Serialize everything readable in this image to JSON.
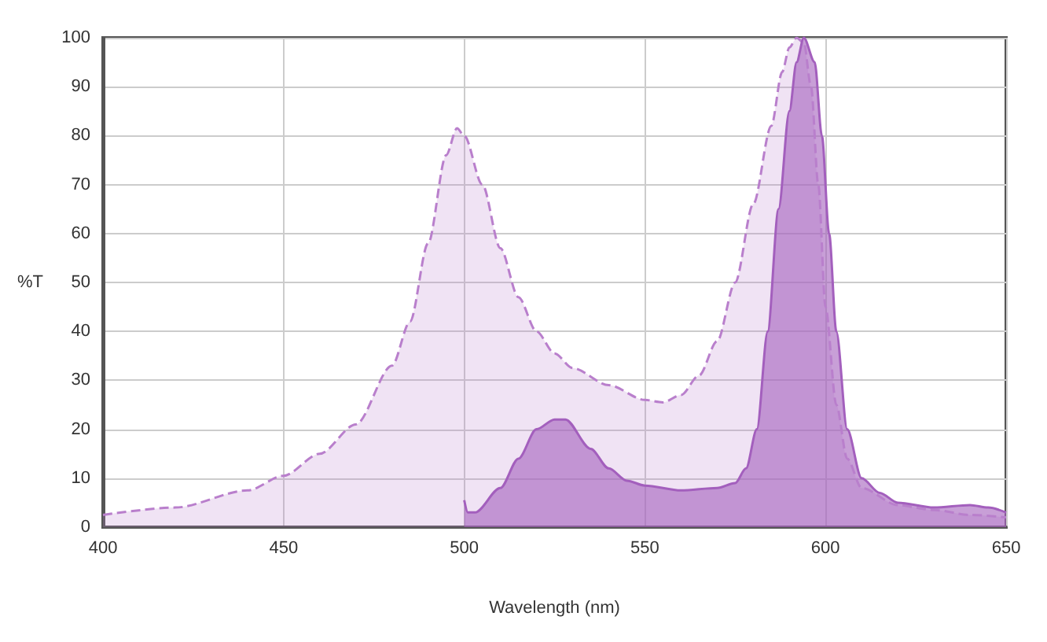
{
  "chart_data": {
    "type": "area",
    "xlabel": "Wavelength (nm)",
    "ylabel": "%T",
    "xlim": [
      400,
      650
    ],
    "ylim": [
      0,
      100
    ],
    "xticks": [
      400,
      450,
      500,
      550,
      600,
      650
    ],
    "yticks": [
      0,
      10,
      20,
      30,
      40,
      50,
      60,
      70,
      80,
      90,
      100
    ],
    "grid": true,
    "marker": "none",
    "series": [
      {
        "color": "#b97fcc",
        "line_style": "dashed",
        "x": [
          400,
          420,
          440,
          450,
          460,
          470,
          480,
          485,
          490,
          495,
          498,
          500,
          505,
          510,
          515,
          520,
          525,
          530,
          540,
          550,
          555,
          560,
          565,
          570,
          575,
          580,
          585,
          588,
          590,
          592,
          594,
          596,
          598,
          600,
          603,
          606,
          610,
          620,
          630,
          640,
          650
        ],
        "values": [
          2.5,
          4,
          7.5,
          10.5,
          15,
          21,
          33,
          42,
          58,
          76,
          81.5,
          80,
          70,
          57,
          47,
          40,
          35.5,
          32.5,
          29,
          26,
          25.5,
          27,
          31,
          38,
          50,
          66,
          82,
          93,
          98,
          100,
          99,
          90,
          70,
          45,
          25,
          14,
          8,
          4.5,
          3.5,
          2.5,
          2
        ]
      },
      {
        "color": "#a35fbd",
        "line_style": "solid",
        "x": [
          500,
          501,
          503,
          510,
          515,
          520,
          525,
          528,
          535,
          540,
          545,
          550,
          560,
          570,
          575,
          578,
          581,
          584,
          587,
          590,
          592,
          594,
          597,
          599,
          601,
          603,
          606,
          610,
          615,
          620,
          630,
          640,
          645,
          650
        ],
        "values": [
          5.5,
          3,
          3,
          8,
          14,
          20,
          22,
          22,
          16,
          12,
          9.5,
          8.5,
          7.5,
          8,
          9,
          12,
          20,
          40,
          65,
          85,
          95,
          100,
          95,
          80,
          60,
          40,
          20,
          10,
          7,
          5,
          4,
          4.5,
          4,
          3
        ]
      }
    ]
  }
}
